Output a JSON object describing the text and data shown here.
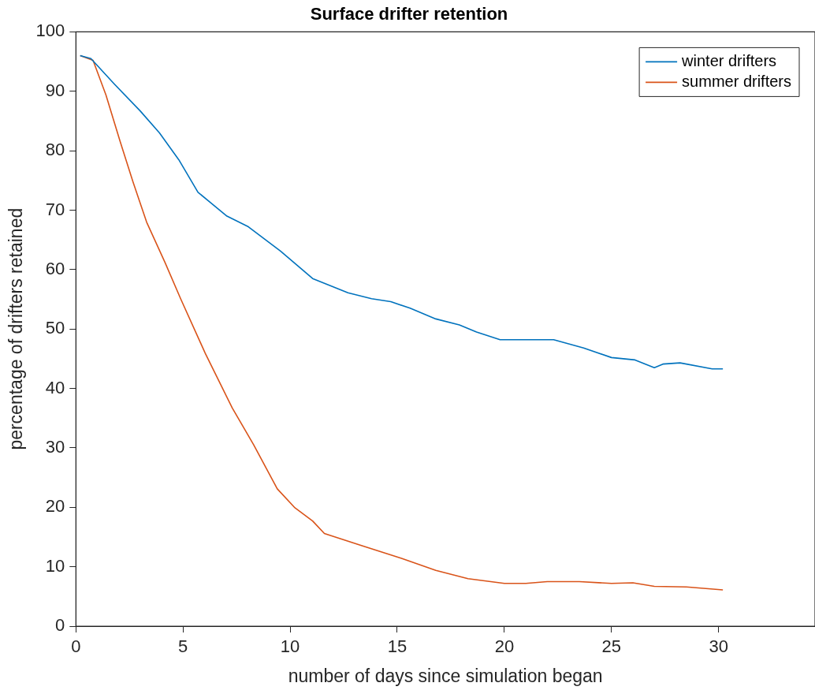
{
  "chart_data": {
    "type": "line",
    "title": "Surface drifter retention",
    "xlabel": "number of days since simulation began",
    "ylabel": "percentage of drifters retained",
    "xlim": [
      0,
      34.5
    ],
    "xticks": [
      0,
      5,
      10,
      15,
      20,
      25,
      30
    ],
    "ylim": [
      0,
      100
    ],
    "yticks": [
      0,
      10,
      20,
      30,
      40,
      50,
      60,
      70,
      80,
      90,
      100
    ],
    "grid": false,
    "legend": "top right",
    "marker": "none",
    "line_style": "solid",
    "series": [
      {
        "name": "winter drifters",
        "color": "#0072bd",
        "x": [
          0.2,
          0.7,
          1.8,
          3.0,
          3.9,
          4.8,
          5.7,
          7.05,
          8.05,
          9.55,
          11.05,
          12.7,
          13.8,
          14.7,
          15.6,
          16.8,
          17.9,
          18.7,
          19.8,
          21.1,
          22.3,
          23.7,
          25.0,
          26.1,
          27.0,
          27.4,
          28.2,
          29.7,
          30.2
        ],
        "values": [
          96,
          95.5,
          91.2,
          86.7,
          83,
          78.5,
          73,
          69,
          67.2,
          63.1,
          58.5,
          56.1,
          55.1,
          54.6,
          53.5,
          51.7,
          50.7,
          49.5,
          48.2,
          48.2,
          48.2,
          46.8,
          45.2,
          44.8,
          43.5,
          44.1,
          44.3,
          43.3,
          43.3
        ]
      },
      {
        "name": "summer drifters",
        "color": "#d95319",
        "x": [
          0.2,
          0.8,
          1.4,
          2.06,
          2.66,
          3.3,
          4.16,
          4.9,
          6.04,
          7.3,
          8.3,
          9.4,
          10.2,
          11.05,
          11.6,
          13.3,
          15.2,
          16.8,
          18.3,
          20.0,
          21.0,
          22.0,
          23.5,
          25.0,
          26.0,
          27.0,
          28.5,
          30.2
        ],
        "values": [
          96,
          95.2,
          89.4,
          81.6,
          74.8,
          68,
          61.2,
          55,
          45.9,
          36.7,
          30.5,
          23.1,
          20,
          17.7,
          15.6,
          13.6,
          11.4,
          9.4,
          8.0,
          7.2,
          7.2,
          7.5,
          7.5,
          7.2,
          7.3,
          6.7,
          6.6,
          6.1
        ]
      }
    ]
  }
}
